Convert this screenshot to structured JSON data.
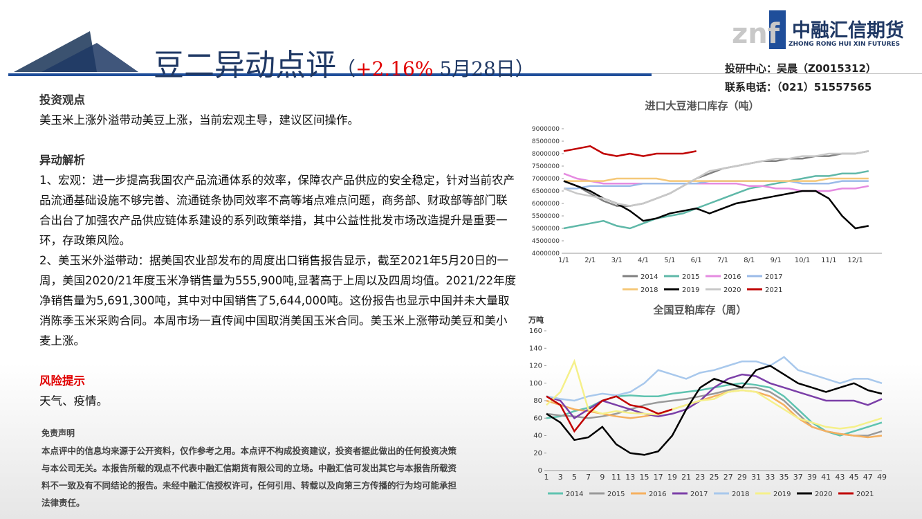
{
  "header": {
    "title": "豆二异动点评",
    "open": "（",
    "change": "+2.16%",
    "date": "5月28日）"
  },
  "logo": {
    "mark": "znf",
    "name": "中融汇信期货",
    "english": "ZHONG RONG HUI XIN FUTURES"
  },
  "contact": [
    "投研中心：吴晨（Z0015312）",
    "联系电话：（021）51557565"
  ],
  "sections": [
    {
      "heading": "投资观点",
      "paragraphs": [
        "美玉米上涨外溢带动美豆上涨，当前宏观主导，建议区间操作。"
      ]
    },
    {
      "heading": "异动解析",
      "paragraphs": [
        "1、宏观：进一步提高我国农产品流通体系的效率，保障农产品供应的安全稳定，针对当前农产品流通基础设施不够完善、流通链条协同效率不高等堵点难点问题，商务部、财政部等部门联合出台了加强农产品供应链体系建设的系列政策举措，其中公益性批发市场改造提升是重要一环，存政策风险。",
        "2、美玉米外溢带动：据美国农业部发布的周度出口销售报告显示，截至2021年5月20日的一周，美国2020/21年度玉米净销售量为555,900吨,显著高于上周以及四周均值。2021/22年度净销售量为5,691,300吨，其中对中国销售了5,644,000吨。这份报告也显示中国并未大量取消陈季玉米采购合同。本周市场一直传闻中国取消美国玉米合同。美玉米上涨带动美豆和美小麦上涨。"
      ]
    },
    {
      "heading": "风险提示",
      "paragraphs": [
        "天气、疫情。"
      ]
    }
  ],
  "disclaimer": {
    "heading": "免责声明",
    "text": "本点评中的信息均来源于公开资料，仅作参考之用。本点评不构成投资建议，投资者据此做出的任何投资决策与本公司无关。本报告所载的观点不代表中融汇信期货有限公司的立场。中融汇信可发出其它与本报告所载资料不一致及有不同结论的报告。未经中融汇信授权许可，任何引用、转载以及向第三方传播的行为均可能承担法律责任。"
  },
  "chart_data": [
    {
      "type": "line",
      "title": "进口大豆港口库存（吨）",
      "categories": [
        "1/1",
        null,
        "2/1",
        null,
        "3/1",
        null,
        "4/1",
        null,
        "5/1",
        null,
        "6/1",
        null,
        "7/1",
        null,
        "8/1",
        null,
        "9/1",
        null,
        "10/1",
        null,
        "11/1",
        null,
        "12/1",
        null
      ],
      "ylim": [
        4000000,
        9000000
      ],
      "yticks": [
        4000000,
        4500000,
        5000000,
        5500000,
        6000000,
        6500000,
        7000000,
        7500000,
        8000000,
        8500000,
        9000000
      ],
      "series": [
        {
          "name": "2014",
          "color": "#808080",
          "values": [
            6900000,
            6700000,
            6400000,
            6100000,
            5900000,
            5900000,
            6000000,
            6200000,
            6400000,
            6700000,
            7000000,
            7200000,
            7400000,
            7500000,
            7600000,
            7700000,
            7700000,
            7800000,
            7800000,
            7900000,
            7900000,
            8000000,
            8000000,
            8100000
          ]
        },
        {
          "name": "2015",
          "color": "#5fb8a8",
          "values": [
            5000000,
            5100000,
            5200000,
            5300000,
            5100000,
            5000000,
            5200000,
            5400000,
            5500000,
            5600000,
            5800000,
            6000000,
            6200000,
            6400000,
            6600000,
            6700000,
            6800000,
            6900000,
            7000000,
            7100000,
            7100000,
            7200000,
            7200000,
            7300000
          ]
        },
        {
          "name": "2016",
          "color": "#e58be0",
          "values": [
            7200000,
            7000000,
            6900000,
            6800000,
            6800000,
            6800000,
            6800000,
            6800000,
            6800000,
            6800000,
            6800000,
            6800000,
            6800000,
            6800000,
            6700000,
            6700000,
            6600000,
            6600000,
            6500000,
            6500000,
            6500000,
            6600000,
            6600000,
            6700000
          ]
        },
        {
          "name": "2017",
          "color": "#9bbbe8",
          "values": [
            6600000,
            6600000,
            6700000,
            6700000,
            6700000,
            6700000,
            6800000,
            6800000,
            6800000,
            6800000,
            6800000,
            6900000,
            6900000,
            6900000,
            6900000,
            6900000,
            6900000,
            6900000,
            6800000,
            6800000,
            6800000,
            6900000,
            6900000,
            6900000
          ]
        },
        {
          "name": "2018",
          "color": "#f5c878",
          "values": [
            6900000,
            6900000,
            6900000,
            6900000,
            7000000,
            7000000,
            7000000,
            7000000,
            6900000,
            6900000,
            6900000,
            6900000,
            6900000,
            6900000,
            6900000,
            6900000,
            6900000,
            6900000,
            6900000,
            6900000,
            7000000,
            7000000,
            7000000,
            7000000
          ]
        },
        {
          "name": "2019",
          "color": "#000000",
          "values": [
            6900000,
            6700000,
            6500000,
            6200000,
            6000000,
            5700000,
            5300000,
            5400000,
            5600000,
            5700000,
            5800000,
            5600000,
            5800000,
            6000000,
            6100000,
            6200000,
            6300000,
            6400000,
            6500000,
            6500000,
            6200000,
            5500000,
            5000000,
            5100000
          ]
        },
        {
          "name": "2020",
          "color": "#c8c8c8",
          "values": [
            6600000,
            6400000,
            6300000,
            6200000,
            6000000,
            5900000,
            6000000,
            6200000,
            6400000,
            6700000,
            7000000,
            7300000,
            7400000,
            7500000,
            7600000,
            7700000,
            7800000,
            7800000,
            7900000,
            7900000,
            8000000,
            8000000,
            8000000,
            8100000
          ]
        },
        {
          "name": "2021",
          "color": "#c00000",
          "values": [
            8100000,
            8200000,
            8300000,
            8000000,
            7900000,
            8000000,
            7900000,
            8000000,
            8000000,
            8000000,
            8100000,
            null,
            null,
            null,
            null,
            null,
            null,
            null,
            null,
            null,
            null,
            null,
            null,
            null
          ]
        }
      ]
    },
    {
      "type": "line",
      "title": "全国豆粕库存（周）",
      "ylabel": "万吨",
      "categories": [
        "1",
        "3",
        "5",
        "7",
        "9",
        "11",
        "13",
        "15",
        "17",
        "19",
        "21",
        "23",
        "25",
        "27",
        "29",
        "31",
        "33",
        "35",
        "37",
        "39",
        "41",
        "43",
        "45",
        "47",
        "49"
      ],
      "ylim": [
        0,
        160
      ],
      "yticks": [
        0,
        20,
        40,
        60,
        80,
        100,
        120,
        140,
        160
      ],
      "series": [
        {
          "name": "2014",
          "color": "#5fc3b0",
          "values": [
            60,
            62,
            68,
            72,
            80,
            85,
            86,
            85,
            85,
            88,
            90,
            92,
            95,
            98,
            100,
            98,
            95,
            85,
            70,
            55,
            45,
            40,
            45,
            50,
            55
          ]
        },
        {
          "name": "2015",
          "color": "#9a9a9a",
          "values": [
            65,
            63,
            62,
            60,
            62,
            65,
            70,
            75,
            78,
            80,
            82,
            85,
            88,
            92,
            95,
            95,
            90,
            80,
            65,
            50,
            45,
            42,
            40,
            40,
            45
          ]
        },
        {
          "name": "2016",
          "color": "#f5b060",
          "values": [
            80,
            75,
            70,
            68,
            65,
            62,
            60,
            62,
            65,
            70,
            75,
            80,
            85,
            90,
            92,
            90,
            85,
            75,
            60,
            50,
            45,
            42,
            40,
            38,
            40
          ]
        },
        {
          "name": "2017",
          "color": "#7b3fa8",
          "values": [
            85,
            80,
            60,
            70,
            80,
            75,
            70,
            65,
            62,
            65,
            70,
            80,
            95,
            105,
            110,
            108,
            100,
            95,
            90,
            85,
            80,
            80,
            80,
            75,
            82
          ]
        },
        {
          "name": "2018",
          "color": "#a8c8ec",
          "values": [
            85,
            82,
            80,
            85,
            88,
            86,
            90,
            100,
            115,
            110,
            105,
            112,
            115,
            120,
            125,
            125,
            120,
            130,
            115,
            110,
            105,
            100,
            105,
            105,
            100
          ]
        },
        {
          "name": "2019",
          "color": "#f5f08a",
          "values": [
            75,
            90,
            125,
            70,
            65,
            68,
            66,
            65,
            64,
            70,
            75,
            80,
            82,
            90,
            92,
            90,
            80,
            70,
            60,
            55,
            50,
            48,
            50,
            55,
            60
          ]
        },
        {
          "name": "2020",
          "color": "#000000",
          "values": [
            65,
            55,
            35,
            38,
            50,
            30,
            20,
            18,
            22,
            40,
            70,
            95,
            105,
            100,
            95,
            115,
            120,
            110,
            100,
            95,
            90,
            95,
            100,
            92,
            88
          ]
        },
        {
          "name": "2021",
          "color": "#c00000",
          "values": [
            85,
            75,
            45,
            65,
            80,
            85,
            75,
            72,
            65,
            70,
            null,
            null,
            null,
            null,
            null,
            null,
            null,
            null,
            null,
            null,
            null,
            null,
            null,
            null,
            null
          ]
        }
      ]
    }
  ]
}
